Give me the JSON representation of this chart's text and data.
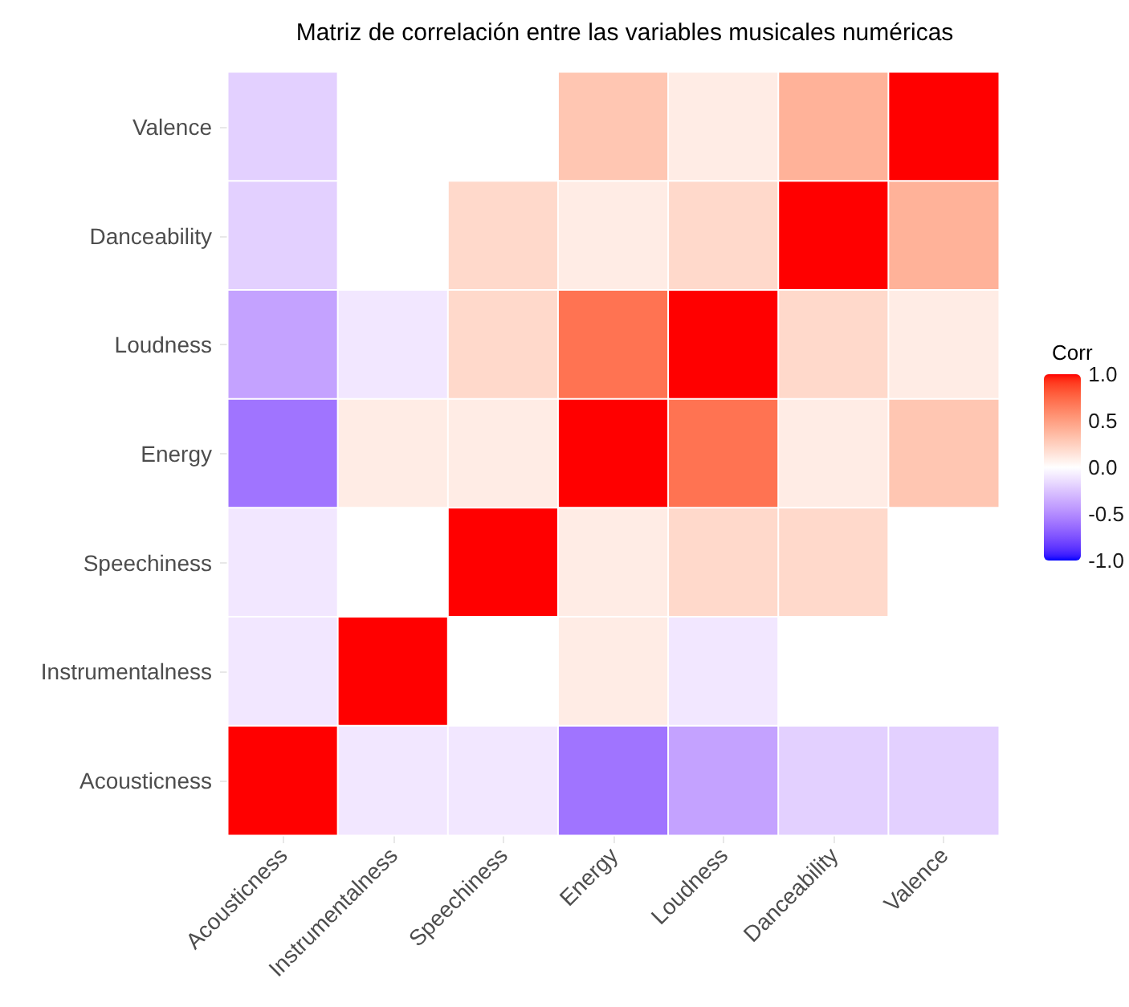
{
  "chart_data": {
    "type": "heatmap",
    "title": "Matriz de correlación entre las variables musicales numéricas",
    "legend_title": "Corr",
    "categories": [
      "Acousticness",
      "Instrumentalness",
      "Speechiness",
      "Energy",
      "Loudness",
      "Danceability",
      "Valence"
    ],
    "y_categories": [
      "Valence",
      "Danceability",
      "Loudness",
      "Energy",
      "Speechiness",
      "Instrumentalness",
      "Acousticness"
    ],
    "cells": [
      [
        -0.2,
        0,
        0,
        0.3,
        0.1,
        0.4,
        1
      ],
      [
        -0.2,
        0,
        0.2,
        0.1,
        0.2,
        1,
        0.4
      ],
      [
        -0.4,
        -0.1,
        0.2,
        0.7,
        1,
        0.2,
        0.1
      ],
      [
        -0.6,
        0.1,
        0.1,
        1,
        0.7,
        0.1,
        0.3
      ],
      [
        -0.1,
        0,
        1,
        0.1,
        0.2,
        0.2,
        0
      ],
      [
        -0.1,
        1,
        0,
        0.1,
        -0.1,
        0,
        0
      ],
      [
        1,
        -0.1,
        -0.1,
        -0.6,
        -0.4,
        -0.2,
        -0.2
      ]
    ],
    "clim": [
      -1,
      1
    ],
    "cticks": [
      {
        "value": -1,
        "label": "-1.0"
      },
      -0.5,
      {
        "value": 0,
        "label": "0.0"
      },
      0.5,
      {
        "value": 1,
        "label": "1.0"
      }
    ]
  }
}
